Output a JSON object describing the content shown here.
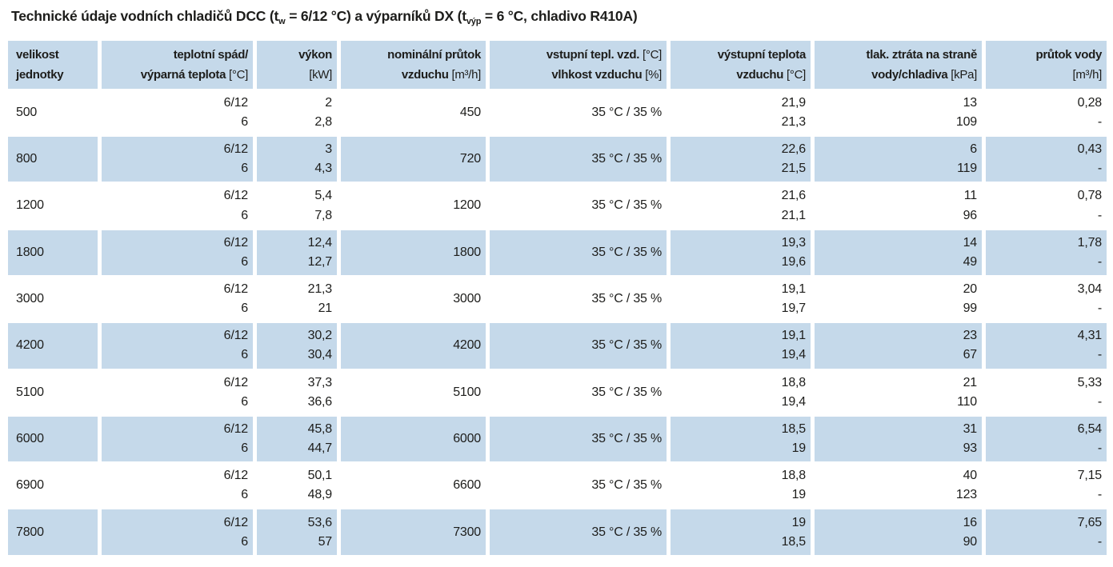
{
  "title": {
    "part1": "Technické údaje vodních chladičů DCC (t",
    "sub1": "w",
    "part2": " = 6/12 °C) a výparníků DX (t",
    "sub2": "výp",
    "part3": " = 6 °C, chladivo R410A)"
  },
  "colors": {
    "row_stripe_blue": "#c5d9ea",
    "text": "#1d1d1b",
    "background": "#ffffff"
  },
  "columns": [
    {
      "id": "velikost-jednotky",
      "align": "left",
      "line1": "velikost",
      "line1_unit": "",
      "line2": "jednotky",
      "line2_unit": ""
    },
    {
      "id": "teplotni-spad",
      "align": "right",
      "line1": "teplotní spád/",
      "line1_unit": "",
      "line2": "výparná teplota",
      "line2_unit": " [°C]"
    },
    {
      "id": "vykon",
      "align": "right",
      "line1": "výkon",
      "line1_unit": "",
      "line2": "",
      "line2_unit": "[kW]"
    },
    {
      "id": "nominalni-prutok",
      "align": "right",
      "line1": "nominální průtok",
      "line1_unit": "",
      "line2": "vzduchu",
      "line2_unit": " [m³/h]"
    },
    {
      "id": "vstupni-teplota",
      "align": "right",
      "line1": "vstupní tepl. vzd.",
      "line1_unit": " [°C]",
      "line2": "vlhkost vzduchu",
      "line2_unit": " [%]"
    },
    {
      "id": "vystupni-teplota",
      "align": "right",
      "line1": "výstupní teplota",
      "line1_unit": "",
      "line2": "vzduchu",
      "line2_unit": " [°C]"
    },
    {
      "id": "tlakova-ztrata",
      "align": "right",
      "line1": "tlak. ztráta na straně",
      "line1_unit": "",
      "line2": "vody/chladiva",
      "line2_unit": " [kPa]"
    },
    {
      "id": "prutok-vody",
      "align": "right",
      "line1": "průtok vody",
      "line1_unit": "",
      "line2": "",
      "line2_unit": "[m³/h]"
    }
  ],
  "rows": [
    {
      "size": "500",
      "spad": [
        "6/12",
        "6"
      ],
      "vykon": [
        "2",
        "2,8"
      ],
      "prutok_vzduchu": "450",
      "vstupni": "35 °C / 35 %",
      "vystupni": [
        "21,9",
        "21,3"
      ],
      "tlak_ztrata": [
        "13",
        "109"
      ],
      "prutok_vody": [
        "0,28",
        "-"
      ]
    },
    {
      "size": "800",
      "spad": [
        "6/12",
        "6"
      ],
      "vykon": [
        "3",
        "4,3"
      ],
      "prutok_vzduchu": "720",
      "vstupni": "35 °C / 35 %",
      "vystupni": [
        "22,6",
        "21,5"
      ],
      "tlak_ztrata": [
        "6",
        "119"
      ],
      "prutok_vody": [
        "0,43",
        "-"
      ]
    },
    {
      "size": "1200",
      "spad": [
        "6/12",
        "6"
      ],
      "vykon": [
        "5,4",
        "7,8"
      ],
      "prutok_vzduchu": "1200",
      "vstupni": "35 °C / 35 %",
      "vystupni": [
        "21,6",
        "21,1"
      ],
      "tlak_ztrata": [
        "11",
        "96"
      ],
      "prutok_vody": [
        "0,78",
        "-"
      ]
    },
    {
      "size": "1800",
      "spad": [
        "6/12",
        "6"
      ],
      "vykon": [
        "12,4",
        "12,7"
      ],
      "prutok_vzduchu": "1800",
      "vstupni": "35 °C / 35 %",
      "vystupni": [
        "19,3",
        "19,6"
      ],
      "tlak_ztrata": [
        "14",
        "49"
      ],
      "prutok_vody": [
        "1,78",
        "-"
      ]
    },
    {
      "size": "3000",
      "spad": [
        "6/12",
        "6"
      ],
      "vykon": [
        "21,3",
        "21"
      ],
      "prutok_vzduchu": "3000",
      "vstupni": "35 °C / 35 %",
      "vystupni": [
        "19,1",
        "19,7"
      ],
      "tlak_ztrata": [
        "20",
        "99"
      ],
      "prutok_vody": [
        "3,04",
        "-"
      ]
    },
    {
      "size": "4200",
      "spad": [
        "6/12",
        "6"
      ],
      "vykon": [
        "30,2",
        "30,4"
      ],
      "prutok_vzduchu": "4200",
      "vstupni": "35 °C / 35 %",
      "vystupni": [
        "19,1",
        "19,4"
      ],
      "tlak_ztrata": [
        "23",
        "67"
      ],
      "prutok_vody": [
        "4,31",
        "-"
      ]
    },
    {
      "size": "5100",
      "spad": [
        "6/12",
        "6"
      ],
      "vykon": [
        "37,3",
        "36,6"
      ],
      "prutok_vzduchu": "5100",
      "vstupni": "35 °C / 35 %",
      "vystupni": [
        "18,8",
        "19,4"
      ],
      "tlak_ztrata": [
        "21",
        "110"
      ],
      "prutok_vody": [
        "5,33",
        "-"
      ]
    },
    {
      "size": "6000",
      "spad": [
        "6/12",
        "6"
      ],
      "vykon": [
        "45,8",
        "44,7"
      ],
      "prutok_vzduchu": "6000",
      "vstupni": "35 °C / 35 %",
      "vystupni": [
        "18,5",
        "19"
      ],
      "tlak_ztrata": [
        "31",
        "93"
      ],
      "prutok_vody": [
        "6,54",
        "-"
      ]
    },
    {
      "size": "6900",
      "spad": [
        "6/12",
        "6"
      ],
      "vykon": [
        "50,1",
        "48,9"
      ],
      "prutok_vzduchu": "6600",
      "vstupni": "35 °C / 35 %",
      "vystupni": [
        "18,8",
        "19"
      ],
      "tlak_ztrata": [
        "40",
        "123"
      ],
      "prutok_vody": [
        "7,15",
        "-"
      ]
    },
    {
      "size": "7800",
      "spad": [
        "6/12",
        "6"
      ],
      "vykon": [
        "53,6",
        "57"
      ],
      "prutok_vzduchu": "7300",
      "vstupni": "35 °C / 35 %",
      "vystupni": [
        "19",
        "18,5"
      ],
      "tlak_ztrata": [
        "16",
        "90"
      ],
      "prutok_vody": [
        "7,65",
        "-"
      ]
    }
  ]
}
